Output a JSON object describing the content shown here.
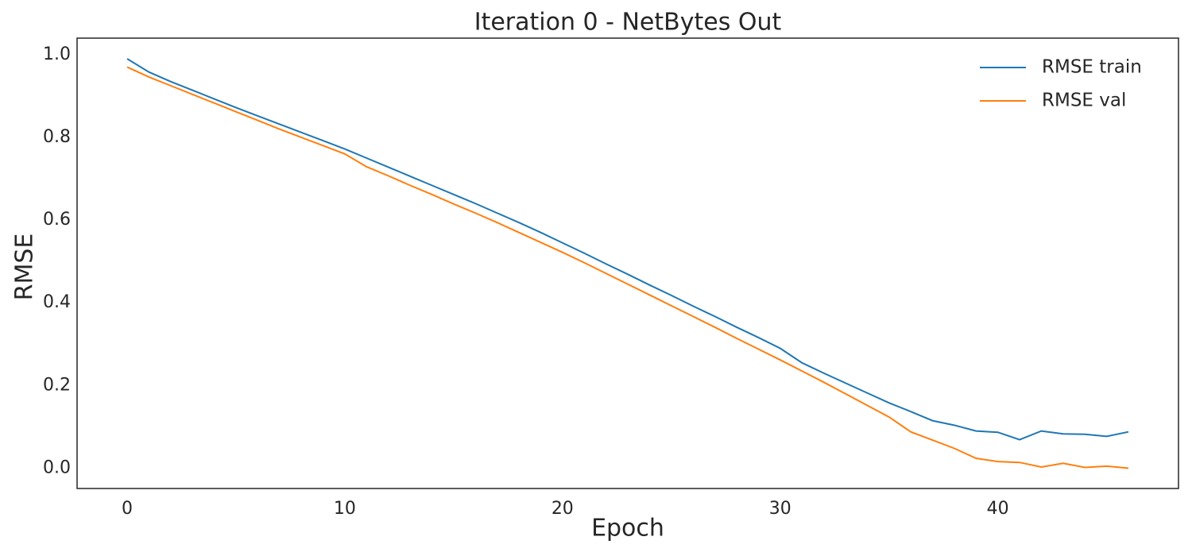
{
  "chart_data": {
    "type": "line",
    "title": "Iteration 0 - NetBytes Out",
    "xlabel": "Epoch",
    "ylabel": "RMSE",
    "x": [
      0,
      1,
      2,
      3,
      4,
      5,
      6,
      7,
      8,
      9,
      10,
      11,
      12,
      13,
      14,
      15,
      16,
      17,
      18,
      19,
      20,
      21,
      22,
      23,
      24,
      25,
      26,
      27,
      28,
      29,
      30,
      31,
      32,
      33,
      34,
      35,
      36,
      37,
      38,
      39,
      40,
      41,
      42,
      43,
      44,
      45,
      46
    ],
    "series": [
      {
        "name": "RMSE train",
        "color": "#1f77b4",
        "values": [
          0.99,
          0.958,
          0.935,
          0.914,
          0.893,
          0.872,
          0.852,
          0.832,
          0.812,
          0.792,
          0.772,
          0.75,
          0.728,
          0.706,
          0.684,
          0.662,
          0.64,
          0.617,
          0.594,
          0.57,
          0.545,
          0.52,
          0.494,
          0.469,
          0.443,
          0.418,
          0.392,
          0.367,
          0.341,
          0.316,
          0.29,
          0.255,
          0.23,
          0.206,
          0.182,
          0.158,
          0.137,
          0.115,
          0.104,
          0.09,
          0.087,
          0.069,
          0.09,
          0.083,
          0.082,
          0.077,
          0.088
        ]
      },
      {
        "name": "RMSE val",
        "color": "#ff7f0e",
        "values": [
          0.97,
          0.946,
          0.925,
          0.904,
          0.883,
          0.862,
          0.841,
          0.82,
          0.8,
          0.78,
          0.76,
          0.729,
          0.707,
          0.684,
          0.662,
          0.639,
          0.617,
          0.594,
          0.57,
          0.546,
          0.522,
          0.497,
          0.471,
          0.445,
          0.419,
          0.393,
          0.367,
          0.341,
          0.314,
          0.288,
          0.262,
          0.235,
          0.208,
          0.18,
          0.152,
          0.124,
          0.088,
          0.068,
          0.048,
          0.024,
          0.016,
          0.014,
          0.003,
          0.012,
          0.002,
          0.005,
          0.0
        ]
      }
    ],
    "xlim": [
      -2.3,
      48.3
    ],
    "ylim": [
      -0.049,
      1.04
    ],
    "xticks": [
      0,
      10,
      20,
      30,
      40
    ],
    "yticks": [
      {
        "value": 0,
        "label": "0.0"
      },
      {
        "value": 0.2,
        "label": "0.2"
      },
      {
        "value": 0.4,
        "label": "0.4"
      },
      {
        "value": 0.6,
        "label": "0.6"
      },
      {
        "value": 0.8,
        "label": "0.8"
      },
      {
        "value": 1,
        "label": "1.0"
      }
    ],
    "grid": false,
    "legend": "upper right"
  }
}
